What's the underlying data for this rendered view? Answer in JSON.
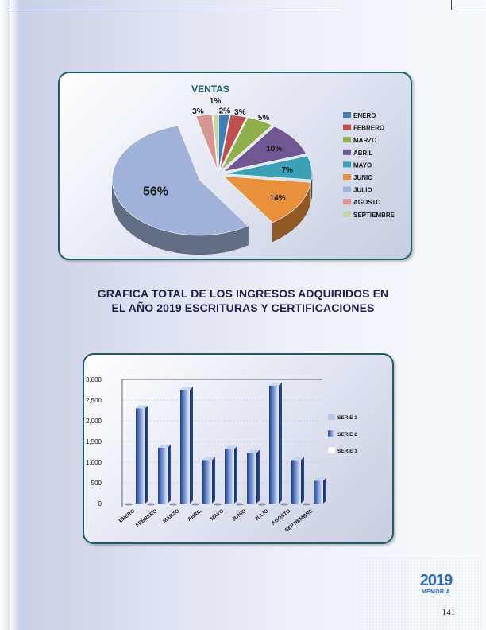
{
  "pie_chart": {
    "colors": {
      "enero": "#3f7fb8",
      "febrero": "#c0504d",
      "marzo": "#8faf4a",
      "abril": "#6f5792",
      "mayo": "#3aa0b6",
      "junio": "#e8903c",
      "julio": "#9fb2d8",
      "agosto": "#d99592",
      "septiembre": "#c4d8a2"
    }
  },
  "heading": {
    "line1": "GRAFICA TOTAL DE LOS INGRESOS ADQUIRIDOS EN",
    "line2": "EL AÑO 2019 ESCRITURAS Y CERTIFICACIONES"
  },
  "chart_data": [
    {
      "type": "pie",
      "title": "VENTAS",
      "categories": [
        "ENERO",
        "FEBRERO",
        "MARZO",
        "ABRIL",
        "MAYO",
        "JUNIO",
        "JULIO",
        "AGOSTO",
        "SEPTIEMBRE"
      ],
      "values": [
        2,
        3,
        5,
        10,
        7,
        14,
        56,
        3,
        1
      ],
      "labels": [
        "2%",
        "3%",
        "5%",
        "10%",
        "7%",
        "14%",
        "56%",
        "3%",
        "1%"
      ],
      "legend_position": "right",
      "style": "3d-exploded"
    },
    {
      "type": "bar",
      "categories": [
        "ENERO",
        "FEBRERO",
        "MARZO",
        "ABRIL",
        "MAYO",
        "JUNIO",
        "JULIO",
        "AGOSTO",
        "SEPTIEMBRE"
      ],
      "series": [
        {
          "name": "SERIE 1",
          "values": [
            0,
            0,
            0,
            0,
            0,
            0,
            0,
            0,
            0
          ]
        },
        {
          "name": "SERIE 2",
          "values": [
            2300,
            1350,
            2750,
            1050,
            1320,
            1220,
            2850,
            1050,
            550
          ]
        },
        {
          "name": "SERIE 3",
          "values": [
            0,
            0,
            0,
            0,
            0,
            0,
            0,
            0,
            0
          ]
        }
      ],
      "y_ticks": [
        "3,000",
        "2,500",
        "2,000",
        "1,500",
        "1,000",
        "500",
        "0"
      ],
      "ylim": [
        0,
        3000
      ],
      "grid": true,
      "legend_position": "right",
      "style": "3d-column"
    }
  ],
  "footer": {
    "logo_year": "2019",
    "logo_text": "MEMORIA",
    "page_number": "141"
  }
}
